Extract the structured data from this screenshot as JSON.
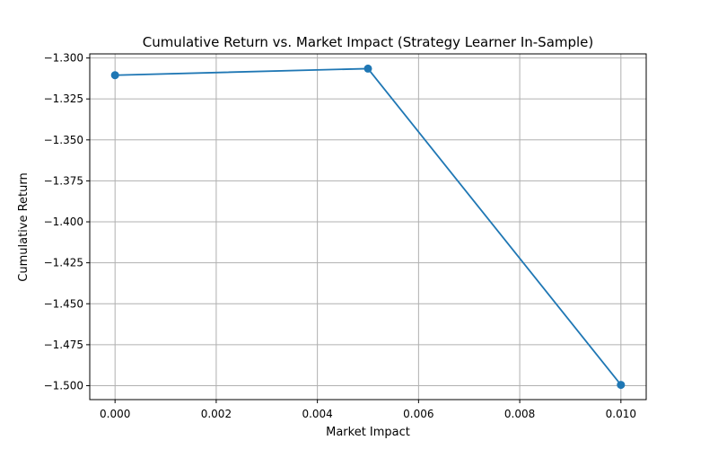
{
  "chart_data": {
    "type": "line",
    "title": "Cumulative Return vs. Market Impact (Strategy Learner In-Sample)",
    "xlabel": "Market Impact",
    "ylabel": "Cumulative Return",
    "x": [
      0.0,
      0.005,
      0.01
    ],
    "series": [
      {
        "values": [
          -1.3105,
          -1.3065,
          -1.4995
        ],
        "color": "#1f77b4",
        "marker": "circle"
      }
    ],
    "xlim": [
      -0.0005,
      0.0105
    ],
    "ylim": [
      -1.5085,
      -1.2975
    ],
    "xticks": [
      0.0,
      0.002,
      0.004,
      0.006,
      0.008,
      0.01
    ],
    "xtick_labels": [
      "0.000",
      "0.002",
      "0.004",
      "0.006",
      "0.008",
      "0.010"
    ],
    "yticks": [
      -1.3,
      -1.325,
      -1.35,
      -1.375,
      -1.4,
      -1.425,
      -1.45,
      -1.475,
      -1.5
    ],
    "ytick_labels": [
      "−1.300",
      "−1.325",
      "−1.350",
      "−1.375",
      "−1.400",
      "−1.425",
      "−1.450",
      "−1.475",
      "−1.500"
    ],
    "grid": true,
    "legend": false
  }
}
